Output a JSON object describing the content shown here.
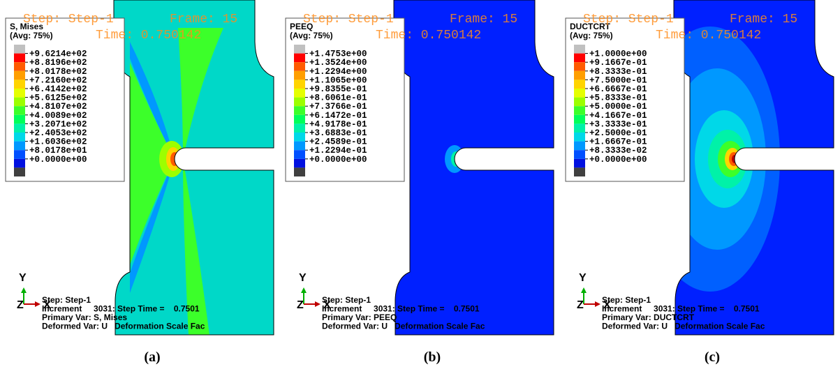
{
  "panels": [
    {
      "overlay": {
        "step": "Step: Step-1",
        "frame": "Frame: 15",
        "time": "Time: 0.750142"
      },
      "legend": {
        "title": "S, Mises",
        "avg": "(Avg: 75%)",
        "labels": [
          "+9.6214e+02",
          "+8.8196e+02",
          "+8.0178e+02",
          "+7.2160e+02",
          "+6.4142e+02",
          "+5.6125e+02",
          "+4.8107e+02",
          "+4.0089e+02",
          "+3.2071e+02",
          "+2.4053e+02",
          "+1.6036e+02",
          "+8.0178e+01",
          "+0.0000e+00"
        ]
      },
      "footer": {
        "step": "Step: Step-1",
        "increment": "Increment     3031: Step Time =    0.7501",
        "primary": "Primary Var: S, Mises",
        "deformed": "Deformed Var: U   Deformation Scale Fac"
      },
      "axes": {
        "y": "Y",
        "z": "Z",
        "x": "X"
      },
      "caption": "(a)"
    },
    {
      "overlay": {
        "step": "Step: Step-1",
        "frame": "Frame: 15",
        "time": "Time: 0.750142"
      },
      "legend": {
        "title": "PEEQ",
        "avg": "(Avg: 75%)",
        "labels": [
          "+1.4753e+00",
          "+1.3524e+00",
          "+1.2294e+00",
          "+1.1065e+00",
          "+9.8355e-01",
          "+8.6061e-01",
          "+7.3766e-01",
          "+6.1472e-01",
          "+4.9178e-01",
          "+3.6883e-01",
          "+2.4589e-01",
          "+1.2294e-01",
          "+0.0000e+00"
        ]
      },
      "footer": {
        "step": "Step: Step-1",
        "increment": "Increment     3031: Step Time =    0.7501",
        "primary": "Primary Var: PEEQ",
        "deformed": "Deformed Var: U   Deformation Scale Fac"
      },
      "axes": {
        "y": "Y",
        "z": "Z",
        "x": "X"
      },
      "caption": "(b)"
    },
    {
      "overlay": {
        "step": "Step: Step-1",
        "frame": "Frame: 15",
        "time": "Time: 0.750142"
      },
      "legend": {
        "title": "DUCTCRT",
        "avg": "(Avg: 75%)",
        "labels": [
          "+1.0000e+00",
          "+9.1667e-01",
          "+8.3333e-01",
          "+7.5000e-01",
          "+6.6667e-01",
          "+5.8333e-01",
          "+5.0000e-01",
          "+4.1667e-01",
          "+3.3333e-01",
          "+2.5000e-01",
          "+1.6667e-01",
          "+8.3333e-02",
          "+0.0000e+00"
        ]
      },
      "footer": {
        "step": "Step: Step-1",
        "increment": "Increment     3031: Step Time =    0.7501",
        "primary": "Primary Var: DUCTCRT",
        "deformed": "Deformed Var: U   Deformation Scale Fac"
      },
      "axes": {
        "y": "Y",
        "z": "Z",
        "x": "X"
      },
      "caption": "(c)"
    }
  ],
  "legend_colors": [
    "#c0c0c0",
    "#ff0000",
    "#ff5a00",
    "#ff9e00",
    "#ffd400",
    "#e5ff00",
    "#9cff00",
    "#3cff2a",
    "#00ff5a",
    "#00f2a8",
    "#00d8e8",
    "#0098ff",
    "#0050ff",
    "#0010e0",
    "#404040"
  ]
}
